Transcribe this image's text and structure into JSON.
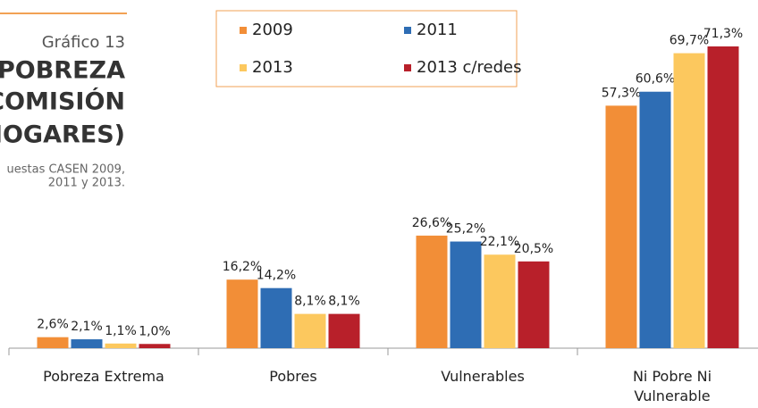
{
  "sidebar": {
    "label": "Gráfico 13",
    "title_lines": [
      "LA POBREZA",
      "LA COMISIÓN",
      "DE HOGARES)"
    ],
    "source_lines": [
      "uestas CASEN 2009,",
      "2011 y 2013."
    ]
  },
  "chart_data": {
    "type": "bar",
    "categories": [
      "Pobreza Extrema",
      "Pobres",
      "Vulnerables",
      "Ni Pobre Ni Vulnerable"
    ],
    "series": [
      {
        "name": "2009",
        "color": "#f28e37",
        "values": [
          2.6,
          16.2,
          26.6,
          57.3
        ],
        "value_labels": [
          "2,6%",
          "16,2%",
          "26,6%",
          "57,3%"
        ]
      },
      {
        "name": "2011",
        "color": "#2e6db4",
        "values": [
          2.1,
          14.2,
          25.2,
          60.6
        ],
        "value_labels": [
          "2,1%",
          "14,2%",
          "25,2%",
          "60,6%"
        ]
      },
      {
        "name": "2013",
        "color": "#fcc85e",
        "values": [
          1.1,
          8.1,
          22.1,
          69.7
        ],
        "value_labels": [
          "1,1%",
          "8,1%",
          "22,1%",
          "69,7%"
        ]
      },
      {
        "name": "2013 c/redes",
        "color": "#b8202a",
        "values": [
          1.0,
          8.1,
          20.5,
          71.3
        ],
        "value_labels": [
          "1,0%",
          "8,1%",
          "20,5%",
          "71,3%"
        ]
      }
    ]
  }
}
